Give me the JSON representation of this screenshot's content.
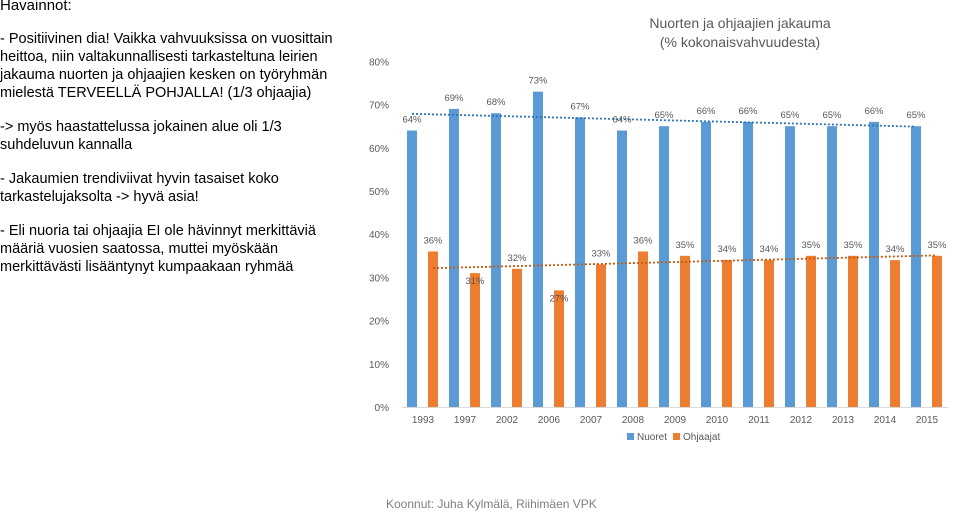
{
  "text": {
    "heading": "Havainnot:",
    "bullet1": "-   Positiivinen dia! Vaikka vahvuuksissa on vuosittain heittoa, niin valtakunnallisesti tarkasteltuna leirien jakauma nuorten ja ohjaajien kesken on työryhmän mielestä TERVEELLÄ POHJALLA! (1/3 ohjaajia)",
    "bullet2": "-> myös haastattelussa jokainen alue oli 1/3 suhdeluvun kannalla",
    "bullet3": "-   Jakaumien trendiviivat hyvin tasaiset koko tarkastelujaksolta -> hyvä asia!",
    "bullet4": "-   Eli nuoria tai ohjaajia EI ole hävinnyt merkittäviä määriä vuosien saatossa, muttei myöskään merkittävästi lisääntynyt kumpaakaan ryhmää",
    "footer": "Koonnut: Juha Kylmälä, Riihimäen VPK"
  },
  "colors": {
    "nuoret": "#5b9bd5",
    "ohjaajat": "#ed7d31",
    "axis_text": "#595959",
    "grid": "#d9d9d9"
  },
  "chart_data": {
    "type": "bar",
    "title": "Nuorten ja ohjaajien jakauma",
    "subtitle": "(% kokonaisvahvuudesta)",
    "categories": [
      "1993",
      "1997",
      "2002",
      "2006",
      "2007",
      "2008",
      "2009",
      "2010",
      "2011",
      "2012",
      "2013",
      "2014",
      "2015"
    ],
    "series": [
      {
        "name": "Nuoret",
        "values": [
          64,
          69,
          68,
          73,
          67,
          64,
          65,
          66,
          66,
          65,
          65,
          66,
          65
        ],
        "labels": [
          "64%",
          "69%",
          "68%",
          "73%",
          "67%",
          "64%",
          "65%",
          "66%",
          "66%",
          "65%",
          "65%",
          "66%",
          "65%"
        ]
      },
      {
        "name": "Ohjaajat",
        "values": [
          36,
          31,
          32,
          27,
          33,
          36,
          35,
          34,
          34,
          35,
          35,
          34,
          35
        ],
        "labels": [
          "36%",
          "31%",
          "32%",
          "27%",
          "33%",
          "36%",
          "35%",
          "34%",
          "34%",
          "35%",
          "35%",
          "34%",
          "35%"
        ]
      }
    ],
    "y_ticks": [
      "0%",
      "10%",
      "20%",
      "30%",
      "40%",
      "50%",
      "60%",
      "70%",
      "80%"
    ],
    "ylim": [
      0,
      80
    ],
    "trendlines": "linear, dotted, per series",
    "grid": false,
    "legend_position": "bottom"
  }
}
